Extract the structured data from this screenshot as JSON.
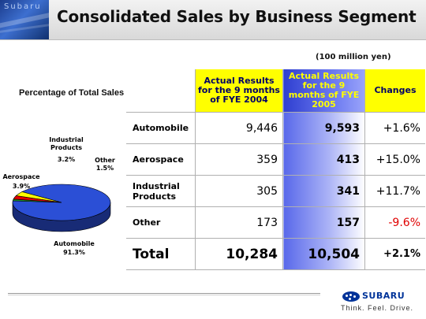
{
  "header": {
    "title": "Consolidated Sales by Business Segment",
    "logo_text": "Subaru"
  },
  "unit_note": "(100 million yen)",
  "pie_title": "Percentage of Total Sales",
  "table": {
    "headers": {
      "fye2004": "Actual Results for the 9 months of FYE 2004",
      "fye2005": "Actual Results for the 9 months of FYE 2005",
      "changes": "Changes"
    },
    "rows": [
      {
        "segment": "Automobile",
        "fye2004": "9,446",
        "fye2005": "9,593",
        "change": "+1.6%"
      },
      {
        "segment": "Aerospace",
        "fye2004": "359",
        "fye2005": "413",
        "change": "+15.0%"
      },
      {
        "segment": "Industrial Products",
        "fye2004": "305",
        "fye2005": "341",
        "change": "+11.7%"
      },
      {
        "segment": "Other",
        "fye2004": "173",
        "fye2005": "157",
        "change": "-9.6%"
      }
    ],
    "total": {
      "label": "Total",
      "fye2004": "10,284",
      "fye2005": "10,504",
      "change": "+2.1%"
    }
  },
  "pie_labels": {
    "industrial_1": "Industrial",
    "industrial_2": "Products",
    "industrial_pct": "3.2%",
    "other": "Other",
    "other_pct": "1.5%",
    "aerospace": "Aerospace",
    "aerospace_pct": "3.9%",
    "automobile": "Automobile",
    "automobile_pct": "91.3%"
  },
  "chart_data": {
    "type": "pie",
    "categories": [
      "Automobile",
      "Aerospace",
      "Industrial Products",
      "Other"
    ],
    "values": [
      91.3,
      3.9,
      3.2,
      1.5
    ],
    "colors": [
      "#2b4fd6",
      "#ffff00",
      "#e00000",
      "#1f8f2a"
    ],
    "title": "Percentage of Total Sales"
  },
  "footer": {
    "brand": "SUBARU",
    "tagline": "Think. Feel. Drive."
  }
}
